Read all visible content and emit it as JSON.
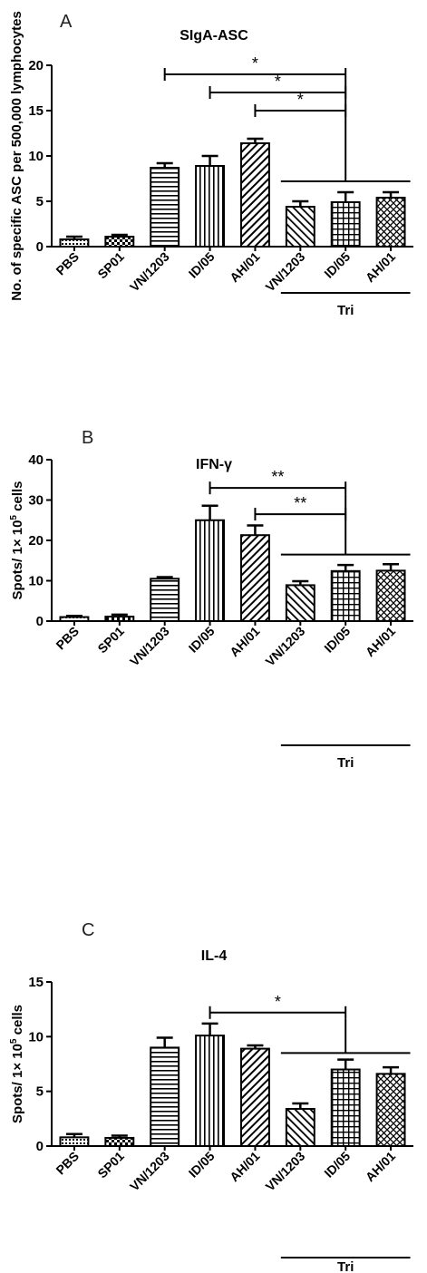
{
  "chart_data": [
    {
      "type": "bar",
      "panel_letter": "A",
      "title": "SIgA-ASC",
      "ylabel": "No. of specific ASC per 500,000 lymphocytes",
      "ylabel_sup": "",
      "ylabel_tail": "",
      "ylim": [
        0,
        20
      ],
      "yticks": [
        0,
        5,
        10,
        15,
        20
      ],
      "categories": [
        "PBS",
        "SP01",
        "VN/1203",
        "ID/05",
        "AH/01",
        "VN/1203",
        "ID/05",
        "AH/01"
      ],
      "values": [
        0.8,
        1.1,
        8.7,
        8.9,
        11.4,
        4.4,
        4.9,
        5.4
      ],
      "errors": [
        0.3,
        0.2,
        0.5,
        1.1,
        0.5,
        0.6,
        1.1,
        0.6
      ],
      "patterns": [
        "dots",
        "checker",
        "hlines",
        "vlines",
        "diag",
        "antidiag",
        "grid",
        "crosshatch"
      ],
      "group": {
        "label": "Tri",
        "from": 5,
        "to": 7
      },
      "significance": [
        {
          "from": 2,
          "to": 6,
          "label": "*",
          "y": 19
        },
        {
          "from": 3,
          "to": 6,
          "label": "*",
          "y": 17
        },
        {
          "from": 4,
          "to": 6,
          "label": "*",
          "y": 15
        }
      ],
      "bracket_y": 7.2
    },
    {
      "type": "bar",
      "panel_letter": "B",
      "title": "IFN-γ",
      "ylabel": "Spots/ 1× 10",
      "ylabel_sup": "5",
      "ylabel_tail": " cells",
      "ylim": [
        0,
        40
      ],
      "yticks": [
        0,
        10,
        20,
        30,
        40
      ],
      "categories": [
        "PBS",
        "SP01",
        "VN/1203",
        "ID/05",
        "AH/01",
        "VN/1203",
        "ID/05",
        "AH/01"
      ],
      "values": [
        1.0,
        1.1,
        10.5,
        25.0,
        21.3,
        8.9,
        12.4,
        12.5
      ],
      "errors": [
        0.3,
        0.5,
        0.4,
        3.6,
        2.4,
        1.0,
        1.5,
        1.6
      ],
      "patterns": [
        "dots",
        "checker",
        "hlines",
        "vlines",
        "diag",
        "antidiag",
        "grid",
        "crosshatch"
      ],
      "group": {
        "label": "Tri",
        "from": 5,
        "to": 7
      },
      "significance": [
        {
          "from": 3,
          "to": 6,
          "label": "**",
          "y": 33
        },
        {
          "from": 4,
          "to": 6,
          "label": "**",
          "y": 26.5
        }
      ],
      "bracket_y": 16.5
    },
    {
      "type": "bar",
      "panel_letter": "C",
      "title": "IL-4",
      "ylabel": "Spots/ 1× 10",
      "ylabel_sup": "5",
      "ylabel_tail": " cells",
      "ylim": [
        0,
        15
      ],
      "yticks": [
        0,
        5,
        10,
        15
      ],
      "categories": [
        "PBS",
        "SP01",
        "VN/1203",
        "ID/05",
        "AH/01",
        "VN/1203",
        "ID/05",
        "AH/01"
      ],
      "values": [
        0.8,
        0.75,
        9.0,
        10.1,
        8.9,
        3.4,
        7.0,
        6.6
      ],
      "errors": [
        0.3,
        0.2,
        0.9,
        1.1,
        0.3,
        0.5,
        0.9,
        0.6
      ],
      "patterns": [
        "dots",
        "checker",
        "hlines",
        "vlines",
        "diag",
        "antidiag",
        "grid",
        "crosshatch"
      ],
      "group": {
        "label": "Tri",
        "from": 5,
        "to": 7
      },
      "significance": [
        {
          "from": 3,
          "to": 6,
          "label": "*",
          "y": 12.2
        }
      ],
      "bracket_y": 8.5
    }
  ]
}
